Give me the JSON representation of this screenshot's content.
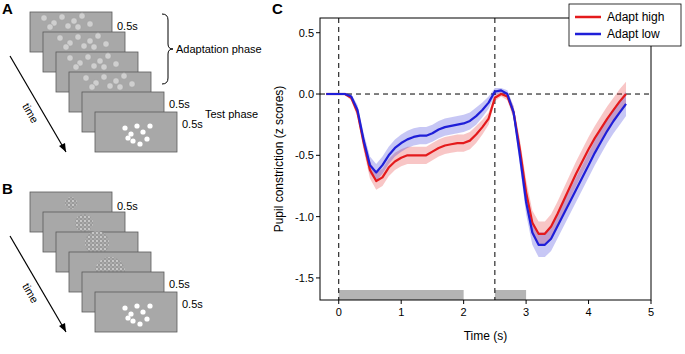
{
  "diagram": {
    "panel_a": {
      "label": "A",
      "durations": [
        "0.5s",
        "0.5s",
        "0.5s"
      ],
      "phase_label": "Adaptation phase",
      "test_label": "Test phase",
      "time_label": "time"
    },
    "panel_b": {
      "label": "B",
      "durations": [
        "0.5s",
        "0.5s",
        "0.5s"
      ],
      "time_label": "time"
    }
  },
  "chart_data": {
    "type": "line",
    "panel_label": "C",
    "x_label": "Time (s)",
    "y_label": "Pupil constriction (z scores)",
    "x": [
      -0.2,
      -0.1,
      0,
      0.1,
      0.2,
      0.3,
      0.4,
      0.5,
      0.6,
      0.7,
      0.8,
      0.9,
      1,
      1.1,
      1.2,
      1.3,
      1.4,
      1.5,
      1.6,
      1.7,
      1.8,
      1.9,
      2,
      2.1,
      2.2,
      2.3,
      2.4,
      2.5,
      2.6,
      2.7,
      2.8,
      2.9,
      3,
      3.1,
      3.2,
      3.3,
      3.4,
      3.5,
      3.6,
      3.7,
      3.8,
      3.9,
      4,
      4.1,
      4.2,
      4.3,
      4.4,
      4.5,
      4.6
    ],
    "series": [
      {
        "name": "Adapt high",
        "color": "#e41a1c",
        "values": [
          0,
          0,
          0,
          0,
          -0.03,
          -0.15,
          -0.4,
          -0.62,
          -0.71,
          -0.68,
          -0.6,
          -0.55,
          -0.52,
          -0.5,
          -0.5,
          -0.5,
          -0.5,
          -0.47,
          -0.44,
          -0.42,
          -0.41,
          -0.4,
          -0.4,
          -0.38,
          -0.33,
          -0.27,
          -0.2,
          -0.03,
          0,
          -0.02,
          -0.15,
          -0.45,
          -0.8,
          -1.05,
          -1.14,
          -1.14,
          -1.08,
          -0.98,
          -0.87,
          -0.76,
          -0.65,
          -0.55,
          -0.45,
          -0.36,
          -0.28,
          -0.2,
          -0.13,
          -0.06,
          0
        ],
        "errors": [
          0.01,
          0.01,
          0.01,
          0.01,
          0.02,
          0.04,
          0.06,
          0.07,
          0.07,
          0.07,
          0.07,
          0.07,
          0.07,
          0.07,
          0.07,
          0.07,
          0.07,
          0.07,
          0.07,
          0.07,
          0.07,
          0.07,
          0.07,
          0.07,
          0.07,
          0.06,
          0.05,
          0.03,
          0.02,
          0.03,
          0.05,
          0.08,
          0.1,
          0.1,
          0.1,
          0.1,
          0.1,
          0.1,
          0.1,
          0.1,
          0.1,
          0.1,
          0.1,
          0.1,
          0.1,
          0.1,
          0.1,
          0.1,
          0.1
        ]
      },
      {
        "name": "Adapt low",
        "color": "#1f1fd8",
        "values": [
          0,
          0,
          0,
          0,
          -0.02,
          -0.13,
          -0.38,
          -0.58,
          -0.64,
          -0.58,
          -0.5,
          -0.44,
          -0.4,
          -0.37,
          -0.35,
          -0.34,
          -0.34,
          -0.32,
          -0.29,
          -0.27,
          -0.26,
          -0.25,
          -0.24,
          -0.22,
          -0.18,
          -0.13,
          -0.07,
          0.02,
          0.03,
          0,
          -0.15,
          -0.5,
          -0.88,
          -1.13,
          -1.23,
          -1.23,
          -1.18,
          -1.08,
          -0.98,
          -0.88,
          -0.78,
          -0.68,
          -0.58,
          -0.48,
          -0.39,
          -0.3,
          -0.22,
          -0.15,
          -0.08
        ],
        "errors": [
          0.01,
          0.01,
          0.01,
          0.01,
          0.02,
          0.04,
          0.06,
          0.07,
          0.07,
          0.07,
          0.07,
          0.07,
          0.07,
          0.07,
          0.07,
          0.07,
          0.07,
          0.07,
          0.07,
          0.07,
          0.07,
          0.07,
          0.07,
          0.07,
          0.07,
          0.06,
          0.05,
          0.03,
          0.02,
          0.03,
          0.05,
          0.08,
          0.1,
          0.1,
          0.1,
          0.1,
          0.1,
          0.1,
          0.1,
          0.1,
          0.1,
          0.1,
          0.1,
          0.1,
          0.1,
          0.1,
          0.1,
          0.1,
          0.1
        ]
      }
    ],
    "xlim": [
      -0.3,
      5
    ],
    "ylim": [
      -1.68,
      0.62
    ],
    "xticks": [
      0,
      1,
      2,
      3,
      4,
      5
    ],
    "yticks": [
      0.5,
      {
        "value": 0,
        "label": "0.0"
      },
      -0.5,
      {
        "value": -1,
        "label": "-1.0"
      },
      -1.5
    ],
    "legend": "upper right",
    "event_lines": [
      0,
      2.5
    ],
    "reference_y": 0,
    "stimulus_periods": [
      [
        0,
        2
      ],
      [
        2.5,
        3
      ]
    ]
  }
}
